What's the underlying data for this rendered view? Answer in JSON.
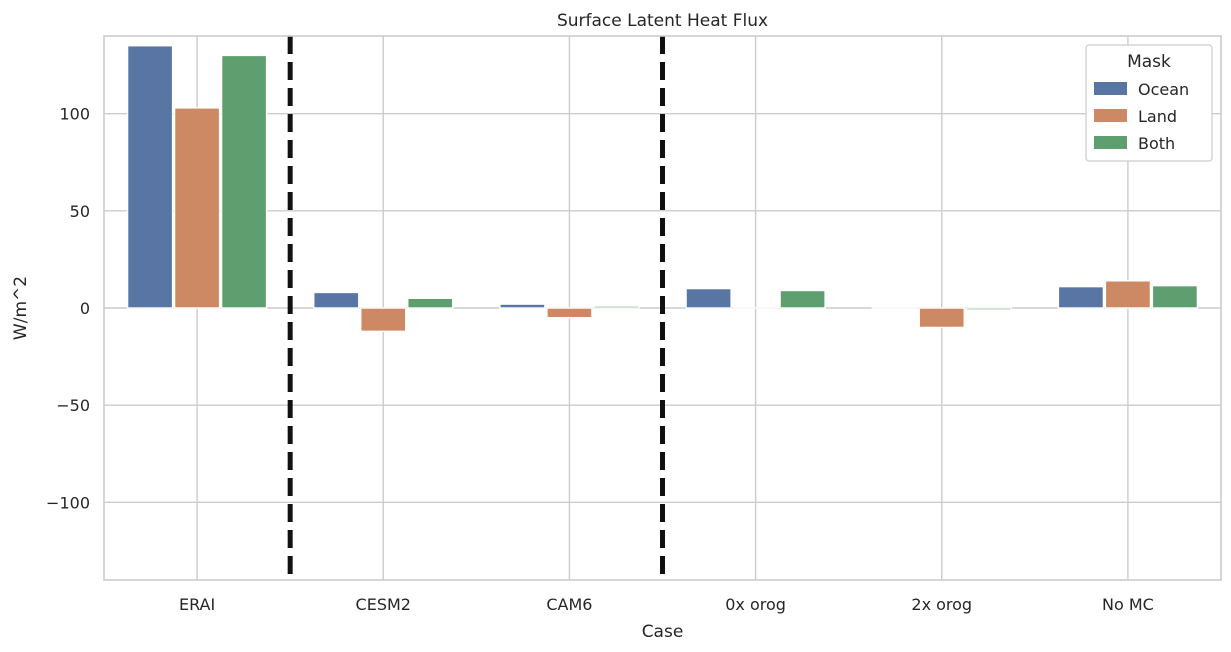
{
  "chart_data": {
    "type": "bar",
    "title": "Surface Latent Heat Flux",
    "xlabel": "Case",
    "ylabel": "W/m^2",
    "categories": [
      "ERAI",
      "CESM2",
      "CAM6",
      "0x orog",
      "2x orog",
      "No MC"
    ],
    "series": [
      {
        "name": "Ocean",
        "color": "#5875a4",
        "values": [
          135,
          8,
          2,
          10,
          0,
          11
        ]
      },
      {
        "name": "Land",
        "color": "#cc8963",
        "values": [
          103,
          -12,
          -5,
          0,
          -10,
          14
        ]
      },
      {
        "name": "Both",
        "color": "#5f9e6e",
        "values": [
          130,
          5,
          1,
          9,
          -1,
          11.5
        ]
      }
    ],
    "ylim": [
      -140,
      140
    ],
    "yticks": [
      -100,
      -50,
      0,
      50,
      100
    ],
    "ytick_labels": [
      "−100",
      "−50",
      "0",
      "50",
      "100"
    ],
    "grid": true,
    "legend": {
      "title": "Mask",
      "placement": "top-right"
    },
    "separators_after_category": [
      0,
      2
    ]
  }
}
